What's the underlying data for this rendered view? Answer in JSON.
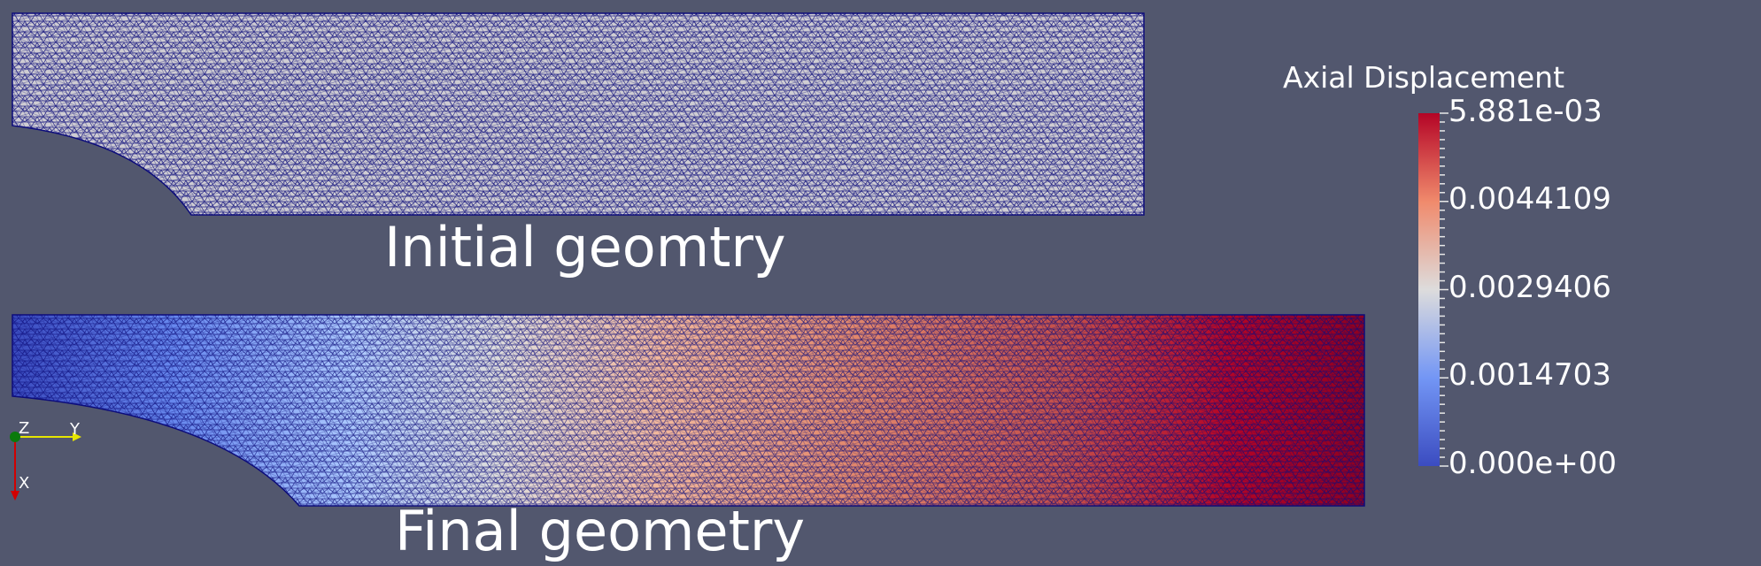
{
  "captions": {
    "initial": "Initial geomtry",
    "final": "Final geometry"
  },
  "legend": {
    "title": "Axial Displacement",
    "ticks": [
      "5.881e-03",
      "0.0044109",
      "0.0029406",
      "0.0014703",
      "0.000e+00"
    ],
    "colors": {
      "high": "#b40426",
      "mid": "#dddcdc",
      "low": "#3b4cc0"
    }
  },
  "orientation_axes": {
    "labels": {
      "z": "Z",
      "y": "Y",
      "x": "X"
    },
    "colors": {
      "x": "#d10000",
      "y": "#e6e600",
      "z": "#0a7a0a"
    }
  },
  "colors": {
    "background": "#52576e",
    "mesh_edge": "#0c0c7a",
    "initial_fill": "#cfcdd3"
  }
}
